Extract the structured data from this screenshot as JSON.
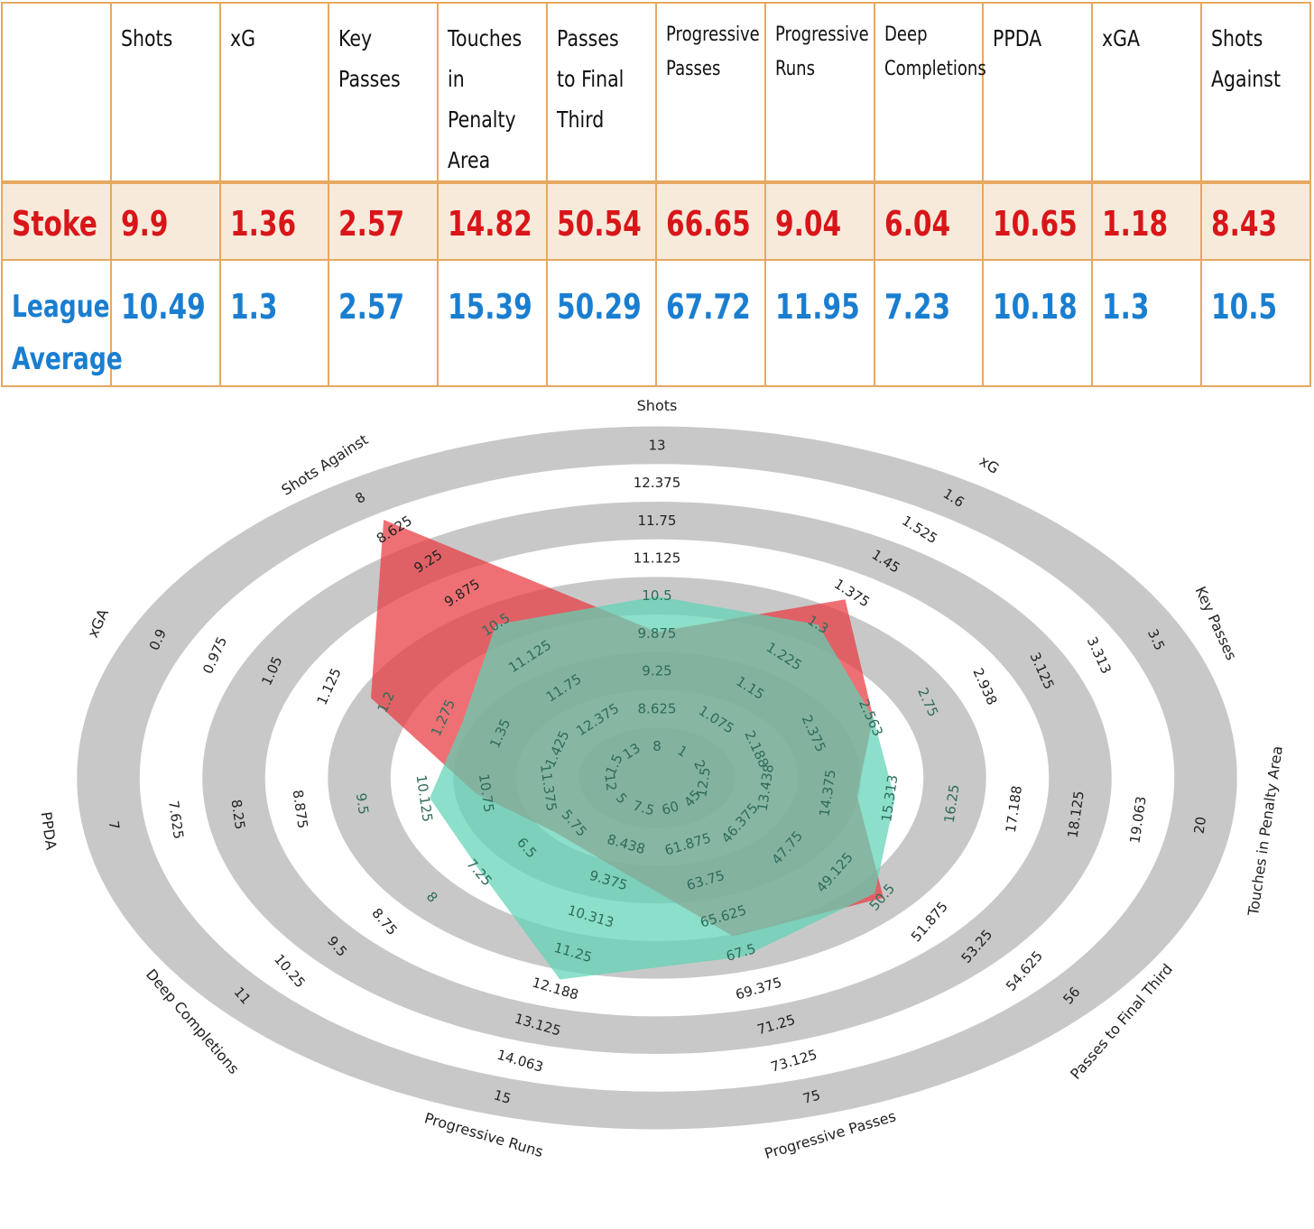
{
  "table": {
    "headers": [
      "",
      "Shots",
      "xG",
      "Key Passes",
      "Touches in Penalty Area",
      "Passes to Final Third",
      "Progressive Passes",
      "Progressive Runs",
      "Deep Completions",
      "PPDA",
      "xGA",
      "Shots Against"
    ],
    "stoke": {
      "label": "Stoke",
      "values": [
        "9.9",
        "1.36",
        "2.57",
        "14.82",
        "50.54",
        "66.65",
        "9.04",
        "6.04",
        "10.65",
        "1.18",
        "8.43"
      ]
    },
    "league": {
      "label": "League Average",
      "values": [
        "10.49",
        "1.3",
        "2.57",
        "15.39",
        "50.29",
        "67.72",
        "11.95",
        "7.23",
        "10.18",
        "1.3",
        "10.5"
      ]
    }
  },
  "chart_data": {
    "type": "radar",
    "axes": [
      {
        "name": "Shots",
        "ticks": [
          "8",
          "8.625",
          "9.25",
          "9.875",
          "10.5",
          "11.125",
          "11.75",
          "12.375",
          "13"
        ]
      },
      {
        "name": "xG",
        "ticks": [
          "1",
          "1.075",
          "1.15",
          "1.225",
          "1.3",
          "1.375",
          "1.45",
          "1.525",
          "1.6"
        ]
      },
      {
        "name": "Key Passes",
        "ticks": [
          "2",
          "2.188",
          "2.375",
          "2.563",
          "2.75",
          "2.938",
          "3.125",
          "3.313",
          "3.5"
        ]
      },
      {
        "name": "Touches in Penalty Area",
        "ticks": [
          "12.5",
          "13.438",
          "14.375",
          "15.313",
          "16.25",
          "17.188",
          "18.125",
          "19.063",
          "20"
        ]
      },
      {
        "name": "Passes to Final Third",
        "ticks": [
          "45",
          "46.375",
          "47.75",
          "49.125",
          "50.5",
          "51.875",
          "53.25",
          "54.625",
          "56"
        ]
      },
      {
        "name": "Progressive Passes",
        "ticks": [
          "60",
          "61.875",
          "63.75",
          "65.625",
          "67.5",
          "69.375",
          "71.25",
          "73.125",
          "75"
        ]
      },
      {
        "name": "Progressive Runs",
        "ticks": [
          "7.5",
          "8.438",
          "9.375",
          "10.313",
          "11.25",
          "12.188",
          "13.125",
          "14.063",
          "15"
        ]
      },
      {
        "name": "Deep Completions",
        "ticks": [
          "5",
          "5.75",
          "6.5",
          "7.25",
          "8",
          "8.75",
          "9.5",
          "10.25",
          "11"
        ]
      },
      {
        "name": "PPDA",
        "ticks": [
          "12",
          "11.375",
          "10.75",
          "10.125",
          "9.5",
          "8.875",
          "8.25",
          "7.625",
          "7"
        ]
      },
      {
        "name": "xGA",
        "ticks": [
          "1.5",
          "1.425",
          "1.35",
          "1.275",
          "1.2",
          "1.125",
          "1.05",
          "0.975",
          "0.9"
        ]
      },
      {
        "name": "Shots Against",
        "ticks": [
          "13",
          "12.375",
          "11.75",
          "11.125",
          "10.5",
          "9.875",
          "9.25",
          "8.625",
          "8"
        ]
      }
    ],
    "ranges": [
      [
        8,
        13
      ],
      [
        1,
        1.6
      ],
      [
        2,
        3.5
      ],
      [
        12.5,
        20
      ],
      [
        45,
        56
      ],
      [
        60,
        75
      ],
      [
        7.5,
        15
      ],
      [
        5,
        11
      ],
      [
        12,
        7
      ],
      [
        1.5,
        0.9
      ],
      [
        13,
        8
      ]
    ],
    "series": [
      {
        "name": "Stoke",
        "color": "#e8393e",
        "values": [
          9.9,
          1.36,
          2.57,
          14.82,
          50.54,
          66.65,
          9.04,
          6.04,
          10.65,
          1.18,
          8.43
        ]
      },
      {
        "name": "League Average",
        "color": "#5fd2b6",
        "values": [
          10.49,
          1.3,
          2.57,
          15.39,
          50.29,
          67.72,
          11.95,
          7.23,
          10.18,
          1.3,
          10.5
        ]
      }
    ],
    "colors": {
      "ring_dark": "#c8c8c8",
      "ring_light": "#ffffff",
      "tick_outer": "#222222",
      "tick_inner": "#2f6b5b"
    }
  }
}
